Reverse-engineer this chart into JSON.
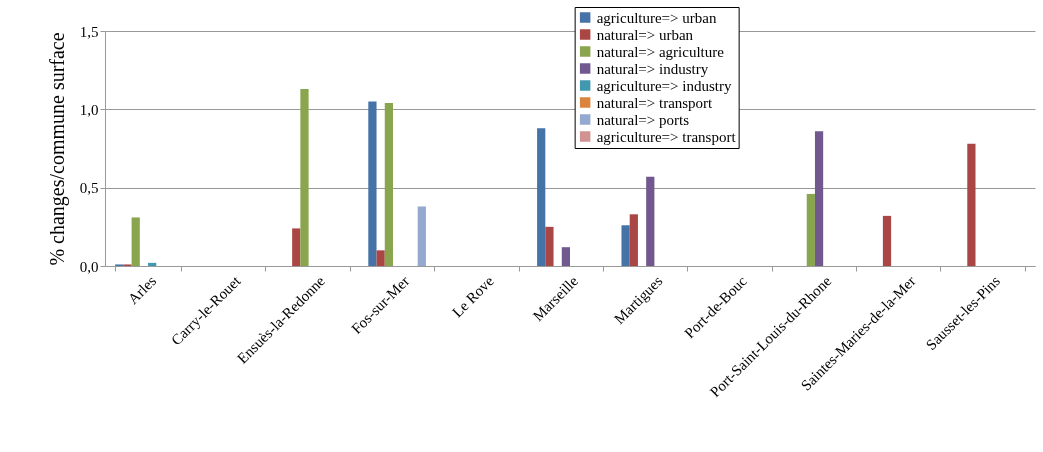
{
  "chart_data": {
    "type": "bar",
    "ylabel": "% changes/commune surface",
    "categories": [
      "Arles",
      "Carry-le-Rouet",
      "Ensuès-la-Redonne",
      "Fos-sur-Mer",
      "Le Rove",
      "Marseille",
      "Martigues",
      "Port-de-Bouc",
      "Port-Saint-Louis-du-Rhone",
      "Saintes-Maries-de-la-Mer",
      "Sausset-les-Pins"
    ],
    "series": [
      {
        "name": "agriculture=> urban",
        "color": "#4572a7",
        "values": [
          0.01,
          null,
          null,
          1.05,
          null,
          0.88,
          0.26,
          null,
          null,
          null,
          null
        ]
      },
      {
        "name": "natural=> urban",
        "color": "#aa4643",
        "values": [
          0.01,
          null,
          0.24,
          0.1,
          null,
          0.25,
          0.33,
          null,
          null,
          0.32,
          0.78
        ]
      },
      {
        "name": "natural=> agriculture",
        "color": "#89a54e",
        "values": [
          0.31,
          null,
          1.13,
          1.04,
          null,
          null,
          null,
          null,
          0.46,
          null,
          null
        ]
      },
      {
        "name": "natural=> industry",
        "color": "#71588f",
        "values": [
          null,
          null,
          null,
          null,
          null,
          0.12,
          0.57,
          null,
          0.86,
          null,
          null
        ]
      },
      {
        "name": "agriculture=> industry",
        "color": "#4198af",
        "values": [
          0.02,
          null,
          null,
          null,
          null,
          null,
          null,
          null,
          null,
          null,
          null
        ]
      },
      {
        "name": "natural=> transport",
        "color": "#db843d",
        "values": [
          null,
          null,
          null,
          null,
          null,
          null,
          null,
          null,
          null,
          null,
          null
        ]
      },
      {
        "name": "natural=> ports",
        "color": "#93a9cf",
        "values": [
          null,
          null,
          null,
          0.38,
          null,
          null,
          null,
          null,
          null,
          null,
          null
        ]
      },
      {
        "name": "agriculture=> transport",
        "color": "#d19392",
        "values": [
          null,
          null,
          null,
          null,
          null,
          null,
          null,
          null,
          null,
          null,
          null
        ]
      }
    ],
    "ylim": [
      0,
      1.5
    ],
    "yticks": [
      {
        "value": 0,
        "label": "0,0"
      },
      {
        "value": 0.5,
        "label": "0,5"
      },
      {
        "value": 1,
        "label": "1,0"
      },
      {
        "value": 1.5,
        "label": "1,5"
      }
    ],
    "grid": "y",
    "legend": "top"
  }
}
